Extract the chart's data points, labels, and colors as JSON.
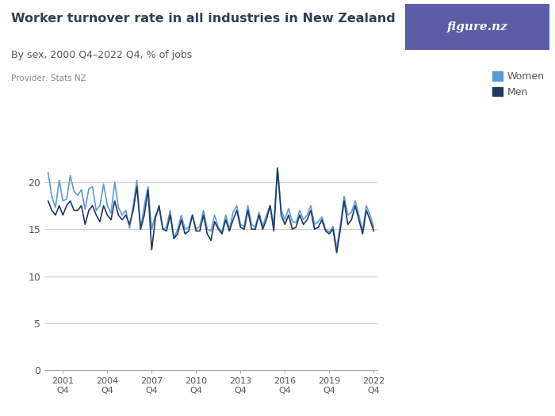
{
  "title": "Worker turnover rate in all industries in New Zealand",
  "subtitle": "By sex, 2000 Q4–2022 Q4, % of jobs",
  "provider": "Provider: Stats NZ",
  "women_color": "#5b9bd5",
  "men_color": "#1f3864",
  "background_color": "#ffffff",
  "logo_color": "#5b5ea6",
  "text_color": "#2e4057",
  "subtitle_color": "#555555",
  "provider_color": "#888888",
  "grid_color": "#d0d0d0",
  "axis_color": "#aaaaaa",
  "ylim": [
    0,
    23
  ],
  "yticks": [
    0,
    5,
    10,
    15,
    20
  ],
  "xtick_labels": [
    "2001\nQ4",
    "2004\nQ4",
    "2007\nQ4",
    "2010\nQ4",
    "2013\nQ4",
    "2016\nQ4",
    "2019\nQ4",
    "2022\nQ4"
  ],
  "xtick_positions": [
    4,
    16,
    28,
    40,
    52,
    64,
    76,
    88
  ],
  "legend_women": "Women",
  "legend_men": "Men",
  "women": [
    21.0,
    18.5,
    17.3,
    20.2,
    18.0,
    18.2,
    20.7,
    19.0,
    18.6,
    19.2,
    17.1,
    19.3,
    19.5,
    17.0,
    17.5,
    19.8,
    17.5,
    16.7,
    20.0,
    17.3,
    16.5,
    17.0,
    15.1,
    17.5,
    20.2,
    15.0,
    17.5,
    19.5,
    15.0,
    16.5,
    17.2,
    15.0,
    15.2,
    17.0,
    14.0,
    15.0,
    16.5,
    15.0,
    15.2,
    16.5,
    15.0,
    15.3,
    17.0,
    15.0,
    14.8,
    16.5,
    15.2,
    14.7,
    16.5,
    15.0,
    16.8,
    17.5,
    15.5,
    15.3,
    17.5,
    15.5,
    15.2,
    16.8,
    15.3,
    16.5,
    17.5,
    15.5,
    21.5,
    17.0,
    16.0,
    17.2,
    15.8,
    15.7,
    17.0,
    16.0,
    16.5,
    17.5,
    15.5,
    15.8,
    16.3,
    15.0,
    14.7,
    15.3,
    13.0,
    15.5,
    18.5,
    16.5,
    16.8,
    18.0,
    16.5,
    14.8,
    17.5,
    16.5,
    15.2
  ],
  "men": [
    18.0,
    17.0,
    16.5,
    17.5,
    16.5,
    17.5,
    18.0,
    17.0,
    17.0,
    17.5,
    15.5,
    17.0,
    17.5,
    16.5,
    15.8,
    17.5,
    16.5,
    16.0,
    18.0,
    16.5,
    16.0,
    16.5,
    15.5,
    17.0,
    19.5,
    15.0,
    16.5,
    19.2,
    12.8,
    16.2,
    17.5,
    15.0,
    14.8,
    16.5,
    14.0,
    14.5,
    16.0,
    14.5,
    14.8,
    16.5,
    14.8,
    14.8,
    16.5,
    14.5,
    13.8,
    15.8,
    15.0,
    14.5,
    16.0,
    14.8,
    16.0,
    17.0,
    15.2,
    15.0,
    17.0,
    15.0,
    15.0,
    16.5,
    15.0,
    16.0,
    17.5,
    14.8,
    21.5,
    16.5,
    15.5,
    16.5,
    15.0,
    15.2,
    16.5,
    15.5,
    16.0,
    17.0,
    15.0,
    15.2,
    16.0,
    14.8,
    14.5,
    15.0,
    12.5,
    15.0,
    18.0,
    15.5,
    16.0,
    17.5,
    16.0,
    14.5,
    17.0,
    16.0,
    14.8
  ]
}
